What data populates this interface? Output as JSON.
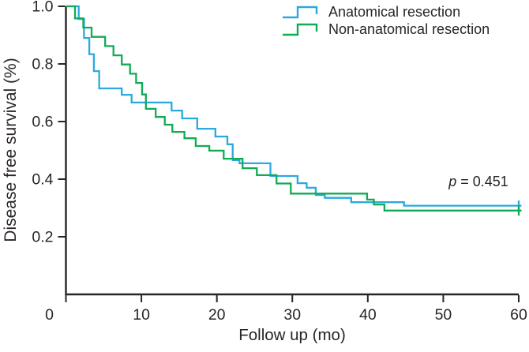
{
  "figure": {
    "background": "#ffffff",
    "text_color": "#2a2425",
    "axis_color": "#2a2425"
  },
  "chart_data": {
    "type": "line",
    "subtype": "kaplan_meier_step",
    "title": "",
    "xlabel": "Follow up (mo)",
    "ylabel": "Disease free survival (%)",
    "xlim": [
      0,
      60
    ],
    "ylim": [
      0,
      1.0
    ],
    "xticks": [
      0,
      10,
      20,
      30,
      40,
      50,
      60
    ],
    "yticks": [
      0.2,
      0.4,
      0.6,
      0.8,
      1.0
    ],
    "grid": false,
    "legend_position": "top-right",
    "annotation": {
      "symbol": "p",
      "text": " = 0.451",
      "x": 54.5,
      "y": 0.4
    },
    "series": [
      {
        "name": "Anatomical resection",
        "color": "#2aa9e0",
        "censored_at_end": true,
        "steps": [
          [
            0,
            1.0
          ],
          [
            1.7,
            0.956
          ],
          [
            2.4,
            0.89
          ],
          [
            3.1,
            0.834
          ],
          [
            3.7,
            0.775
          ],
          [
            4.4,
            0.715
          ],
          [
            7.4,
            0.693
          ],
          [
            8.7,
            0.666
          ],
          [
            14.0,
            0.638
          ],
          [
            15.4,
            0.611
          ],
          [
            17.4,
            0.575
          ],
          [
            19.8,
            0.548
          ],
          [
            21.4,
            0.521
          ],
          [
            22.1,
            0.466
          ],
          [
            23.0,
            0.455
          ],
          [
            27.1,
            0.411
          ],
          [
            30.7,
            0.386
          ],
          [
            31.9,
            0.37
          ],
          [
            33.1,
            0.345
          ],
          [
            34.3,
            0.335
          ],
          [
            37.8,
            0.32
          ],
          [
            44.8,
            0.308
          ]
        ]
      },
      {
        "name": "Non-anatomical resection",
        "color": "#12ab55",
        "censored_at_end": true,
        "steps": [
          [
            0,
            1.0
          ],
          [
            1.2,
            0.958
          ],
          [
            2.3,
            0.926
          ],
          [
            3.4,
            0.894
          ],
          [
            5.2,
            0.862
          ],
          [
            6.3,
            0.83
          ],
          [
            7.4,
            0.798
          ],
          [
            8.5,
            0.766
          ],
          [
            9.3,
            0.734
          ],
          [
            10.1,
            0.694
          ],
          [
            10.6,
            0.644
          ],
          [
            11.9,
            0.616
          ],
          [
            13.1,
            0.589
          ],
          [
            14.1,
            0.564
          ],
          [
            15.7,
            0.542
          ],
          [
            17.2,
            0.515
          ],
          [
            19.0,
            0.499
          ],
          [
            20.9,
            0.471
          ],
          [
            23.4,
            0.438
          ],
          [
            25.3,
            0.414
          ],
          [
            27.9,
            0.385
          ],
          [
            29.8,
            0.35
          ],
          [
            39.9,
            0.329
          ],
          [
            40.8,
            0.312
          ],
          [
            42.2,
            0.291
          ]
        ]
      }
    ]
  }
}
